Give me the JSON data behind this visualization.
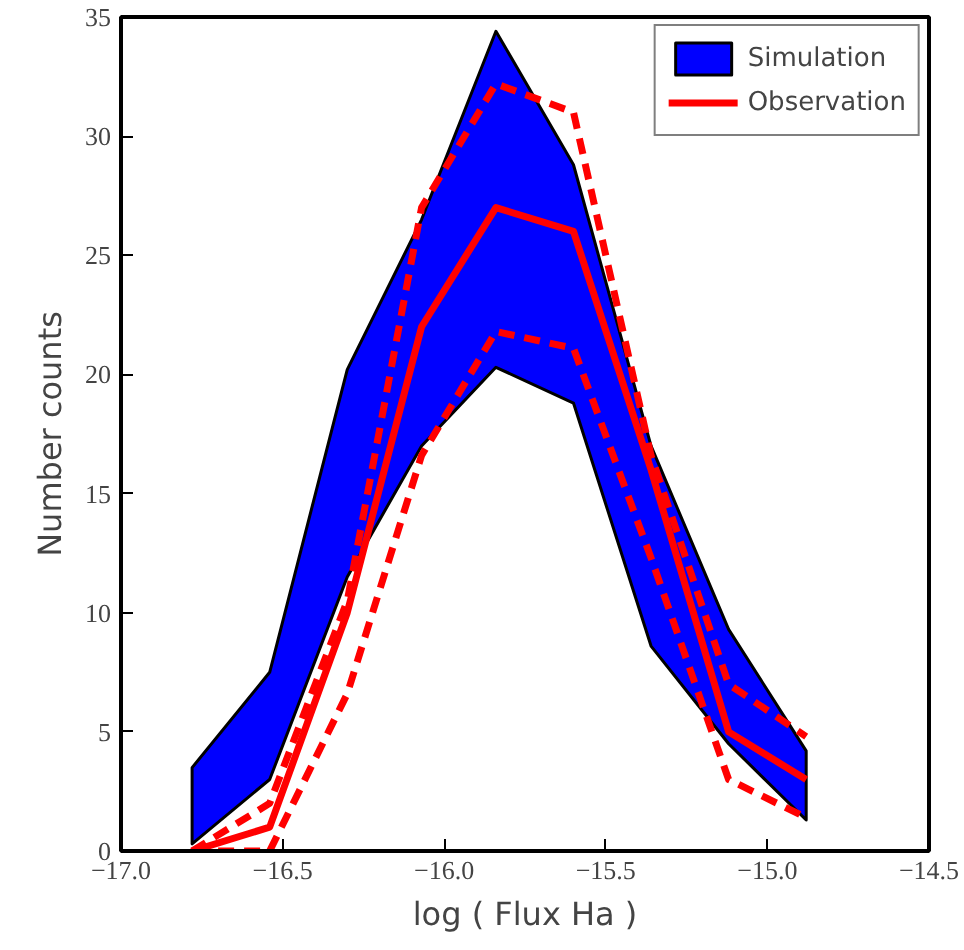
{
  "chart_data": {
    "type": "line",
    "xlabel": "log ( Flux Ha )",
    "ylabel": "Number counts",
    "x": [
      -16.78,
      -16.54,
      -16.3,
      -16.07,
      -15.84,
      -15.6,
      -15.36,
      -15.12,
      -14.88
    ],
    "xlim": [
      -17.0,
      -14.5
    ],
    "ylim": [
      0,
      35
    ],
    "xticks": [
      {
        "value": -17.0,
        "label": "−17.0"
      },
      {
        "value": -16.5,
        "label": "−16.5"
      },
      {
        "value": -16.0,
        "label": "−16.0"
      },
      {
        "value": -15.5,
        "label": "−15.5"
      },
      {
        "value": -15.0,
        "label": "−15.0"
      },
      {
        "value": -14.5,
        "label": "−14.5"
      }
    ],
    "yticks": [
      0,
      5,
      10,
      15,
      20,
      25,
      30,
      35
    ],
    "grid": false,
    "legend": "top right",
    "series": [
      {
        "name": "Simulation",
        "type": "area",
        "color": "#0000ff",
        "values": [
          null,
          null,
          null,
          null,
          null,
          null,
          null,
          null,
          null
        ],
        "upper": [
          3.5,
          7.5,
          20.2,
          26.5,
          34.4,
          28.8,
          17,
          9.3,
          4.2
        ],
        "lower": [
          0.3,
          3,
          11.5,
          17,
          20.3,
          18.8,
          8.6,
          4.5,
          1.3
        ]
      },
      {
        "color": "#ff0000",
        "line_style": "dashed",
        "values": [
          0,
          2,
          10.5,
          27,
          32.2,
          31,
          16.6,
          7,
          4.8
        ]
      },
      {
        "color": "#ff0000",
        "line_style": "dashed",
        "values": [
          0,
          0,
          6.6,
          16.6,
          21.8,
          21.1,
          12.3,
          3,
          1.4
        ]
      },
      {
        "name": "Observation",
        "color": "#ff0000",
        "line_style": "solid",
        "values": [
          0,
          1,
          10,
          22,
          27,
          26,
          16,
          5,
          3
        ]
      }
    ]
  }
}
